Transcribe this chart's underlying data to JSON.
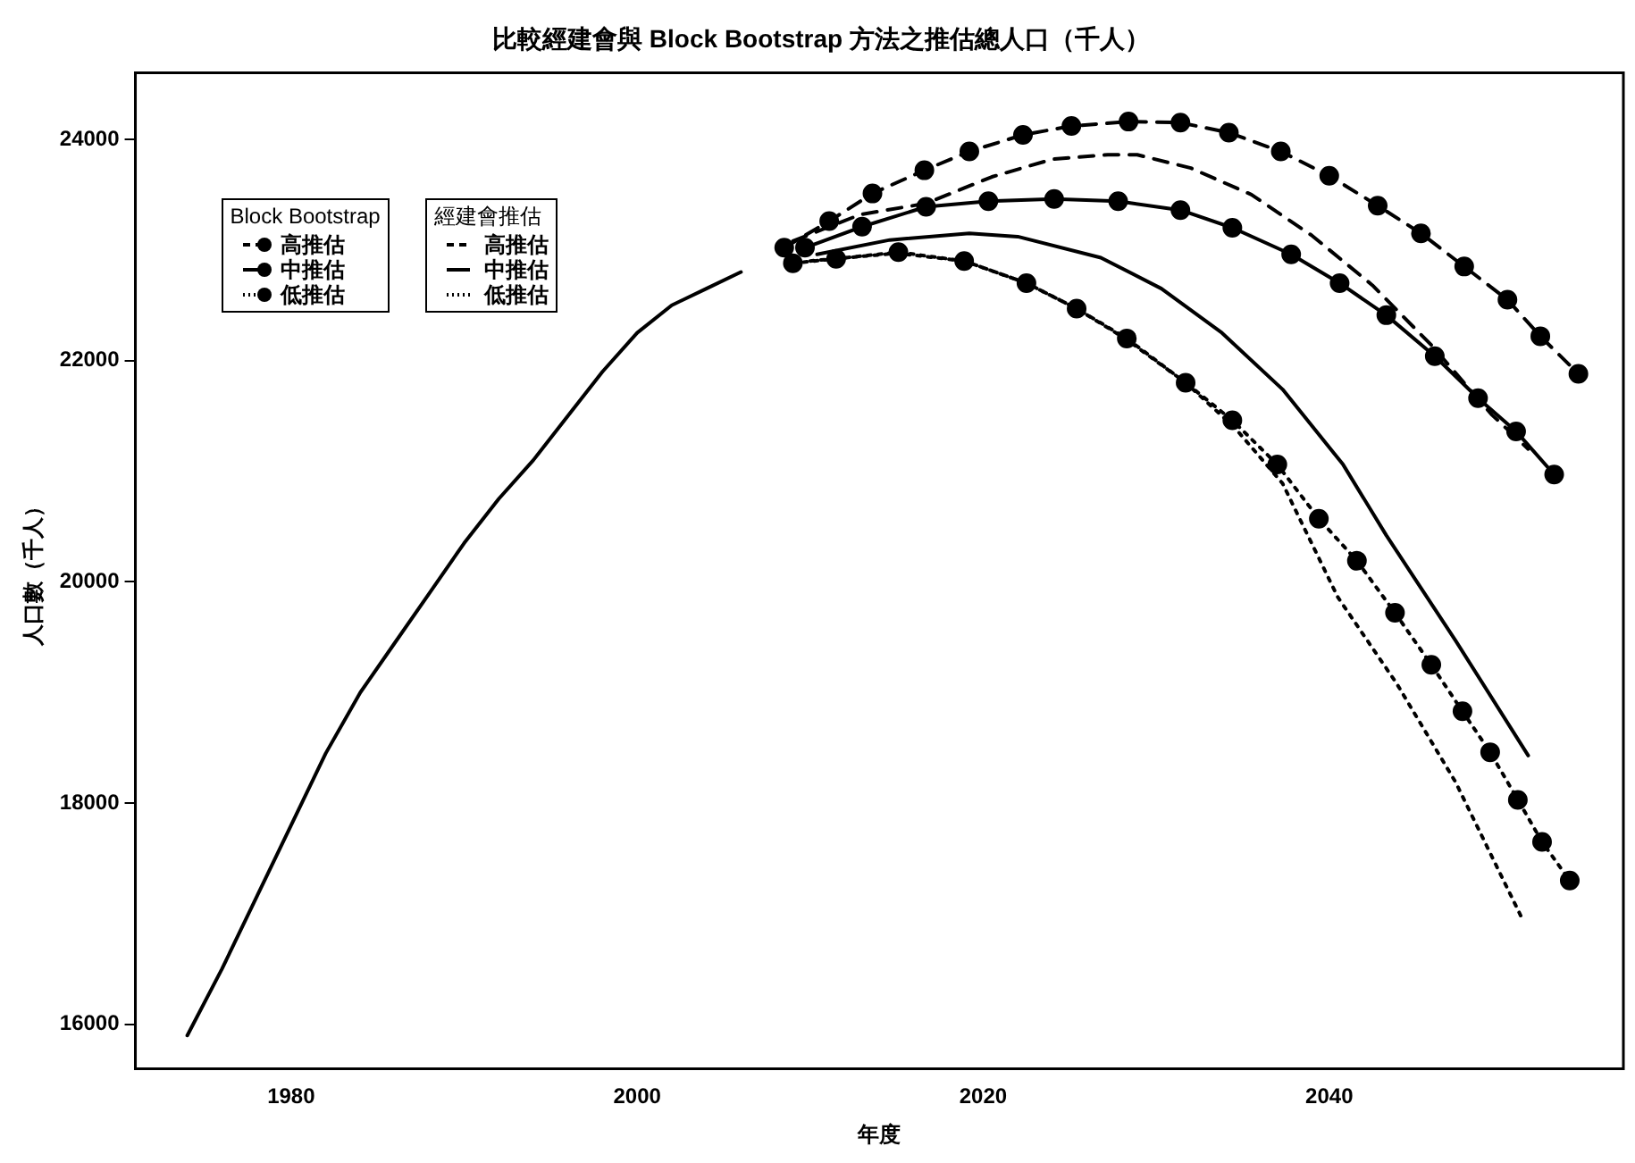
{
  "chart_data": {
    "type": "line",
    "title": "比較經建會與 Block Bootstrap 方法之推估總人口（千人）",
    "xlabel": "年度",
    "ylabel": "人口數（千人）",
    "xlim": [
      1971,
      2057
    ],
    "xticks": [
      1980,
      2000,
      2020,
      2040
    ],
    "ylim": [
      15600,
      24600
    ],
    "yticks": [
      16000,
      18000,
      20000,
      22000,
      24000
    ],
    "grid": false,
    "legend": "top left",
    "annotations": [
      "Block Bootstrap",
      "經建會推估"
    ],
    "series": [
      {
        "color": "#000000",
        "line_style": "solid",
        "marker": "none",
        "x": [
          1974,
          1976,
          1978,
          1980,
          1982,
          1984,
          1986,
          1988,
          1990,
          1992,
          1994,
          1996,
          1998,
          2000,
          2002,
          2004,
          2006
        ],
        "values": [
          15900,
          16500,
          17150,
          17800,
          18450,
          19000,
          19450,
          19900,
          20350,
          20750,
          21100,
          21500,
          21900,
          22250,
          22500,
          22650,
          22800
        ]
      },
      {
        "name": "高推估",
        "color": "#000000",
        "line_style": "dashed",
        "marker": "circle",
        "x": [
          2008.5,
          2011.1,
          2013.6,
          2016.6,
          2019.2,
          2022.3,
          2025.1,
          2028.4,
          2031.4,
          2034.2,
          2037.2,
          2040.0,
          2042.8,
          2045.3,
          2047.8,
          2050.3,
          2052.2,
          2054.4
        ],
        "values": [
          23020,
          23260,
          23510,
          23720,
          23890,
          24040,
          24120,
          24160,
          24150,
          24060,
          23890,
          23670,
          23400,
          23150,
          22850,
          22550,
          22220,
          21880
        ]
      },
      {
        "name": "中推估",
        "color": "#000000",
        "line_style": "solid",
        "marker": "circle",
        "x": [
          2009.7,
          2013.0,
          2016.7,
          2020.3,
          2024.1,
          2027.8,
          2031.4,
          2034.4,
          2037.8,
          2040.6,
          2043.3,
          2046.1,
          2048.6,
          2050.8,
          2053.0
        ],
        "values": [
          23020,
          23210,
          23390,
          23440,
          23460,
          23440,
          23360,
          23200,
          22960,
          22700,
          22410,
          22040,
          21660,
          21360,
          20970
        ]
      },
      {
        "name": "低推估",
        "color": "#000000",
        "line_style": "dotted",
        "marker": "circle",
        "x": [
          2009.0,
          2011.5,
          2015.1,
          2018.9,
          2022.5,
          2025.4,
          2028.3,
          2031.7,
          2034.4,
          2037.0,
          2039.4,
          2041.6,
          2043.8,
          2045.9,
          2047.7,
          2049.3,
          2050.9,
          2052.3,
          2053.9
        ],
        "values": [
          22880,
          22920,
          22980,
          22900,
          22700,
          22470,
          22200,
          21800,
          21460,
          21060,
          20570,
          20190,
          19720,
          19250,
          18830,
          18460,
          18030,
          17650,
          17300
        ]
      },
      {
        "name": "高推估",
        "color": "#000000",
        "line_style": "dashed",
        "marker": "none",
        "x": [
          2009.0,
          2012.9,
          2016.7,
          2020.5,
          2024.0,
          2027.2,
          2028.9,
          2032.0,
          2035.5,
          2039.0,
          2042.5,
          2045.9,
          2049.4,
          2051.5
        ],
        "values": [
          23080,
          23320,
          23420,
          23660,
          23820,
          23860,
          23860,
          23740,
          23500,
          23130,
          22680,
          22140,
          21510,
          21200
        ]
      },
      {
        "name": "中推估",
        "color": "#000000",
        "line_style": "solid",
        "marker": "none",
        "x": [
          2010.4,
          2014.6,
          2019.2,
          2022.0,
          2026.8,
          2030.3,
          2033.8,
          2037.3,
          2040.8,
          2043.3,
          2047.3,
          2051.5
        ],
        "values": [
          22960,
          23090,
          23150,
          23120,
          22930,
          22650,
          22250,
          21740,
          21060,
          20420,
          19470,
          18430
        ]
      },
      {
        "name": "低推估",
        "color": "#000000",
        "line_style": "dotted",
        "marker": "none",
        "x": [
          2010,
          2015,
          2018.9,
          2022.5,
          2025.4,
          2028.2,
          2031.7,
          2034.5,
          2037.3,
          2040.5,
          2043.9,
          2047.3,
          2051.2
        ],
        "values": [
          22900,
          22970,
          22900,
          22700,
          22470,
          22200,
          21800,
          21400,
          20890,
          19860,
          19080,
          18190,
          16940
        ]
      }
    ]
  }
}
